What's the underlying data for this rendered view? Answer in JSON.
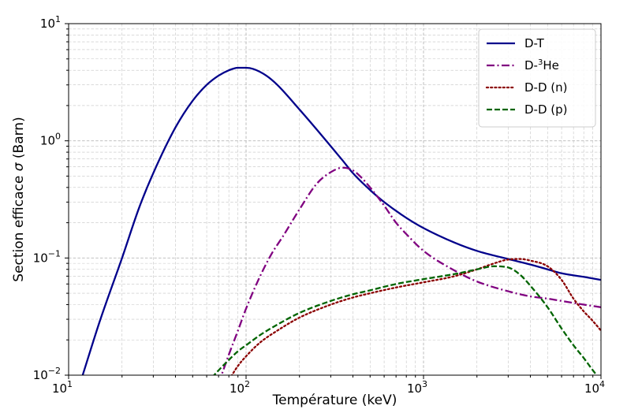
{
  "chart_data": {
    "type": "line",
    "xlabel": "Température (keV)",
    "ylabel_text": "Section efficace ",
    "ylabel_symbol": "σ",
    "ylabel_unit": " (Barn)",
    "xscale": "log",
    "yscale": "log",
    "xlim": [
      10,
      10000
    ],
    "ylim": [
      0.01,
      10
    ],
    "grid": true,
    "grid_minor": true,
    "legend_position": "upper right",
    "x_ticks": [
      {
        "base": "10",
        "exp": "1"
      },
      {
        "base": "10",
        "exp": "2"
      },
      {
        "base": "10",
        "exp": "3"
      },
      {
        "base": "10",
        "exp": "4"
      }
    ],
    "y_ticks": [
      {
        "base": "10",
        "exp": "−2"
      },
      {
        "base": "10",
        "exp": "−1"
      },
      {
        "base": "10",
        "exp": "0"
      },
      {
        "base": "10",
        "exp": "1"
      }
    ],
    "series": [
      {
        "name": "D-T",
        "name_prefix": "D-T",
        "name_sup": "",
        "name_suffix": "",
        "color": "#00008b",
        "style": "solid",
        "points": [
          [
            12,
            0.01
          ],
          [
            15,
            0.029
          ],
          [
            20,
            0.1
          ],
          [
            25,
            0.27
          ],
          [
            30,
            0.53
          ],
          [
            40,
            1.3
          ],
          [
            50,
            2.2
          ],
          [
            60,
            3.0
          ],
          [
            70,
            3.6
          ],
          [
            80,
            4.0
          ],
          [
            90,
            4.2
          ],
          [
            100,
            4.2
          ],
          [
            110,
            4.1
          ],
          [
            130,
            3.6
          ],
          [
            150,
            3.0
          ],
          [
            200,
            1.85
          ],
          [
            250,
            1.25
          ],
          [
            300,
            0.9
          ],
          [
            350,
            0.68
          ],
          [
            400,
            0.53
          ],
          [
            500,
            0.38
          ],
          [
            600,
            0.3
          ],
          [
            800,
            0.22
          ],
          [
            1000,
            0.18
          ],
          [
            1500,
            0.135
          ],
          [
            2000,
            0.115
          ],
          [
            3000,
            0.098
          ],
          [
            4000,
            0.088
          ],
          [
            5000,
            0.08
          ],
          [
            6000,
            0.074
          ],
          [
            8000,
            0.069
          ],
          [
            10000,
            0.065
          ]
        ]
      },
      {
        "name": "D-3He",
        "name_prefix": "D-",
        "name_sup": "3",
        "name_suffix": "He",
        "color": "#800080",
        "style": "dashdot",
        "points": [
          [
            70,
            0.0085
          ],
          [
            80,
            0.015
          ],
          [
            90,
            0.024
          ],
          [
            100,
            0.037
          ],
          [
            120,
            0.07
          ],
          [
            140,
            0.11
          ],
          [
            160,
            0.15
          ],
          [
            200,
            0.26
          ],
          [
            250,
            0.43
          ],
          [
            300,
            0.54
          ],
          [
            350,
            0.59
          ],
          [
            400,
            0.56
          ],
          [
            450,
            0.48
          ],
          [
            500,
            0.4
          ],
          [
            600,
            0.28
          ],
          [
            700,
            0.2
          ],
          [
            800,
            0.16
          ],
          [
            1000,
            0.115
          ],
          [
            1500,
            0.078
          ],
          [
            2000,
            0.063
          ],
          [
            3000,
            0.052
          ],
          [
            4000,
            0.047
          ],
          [
            5000,
            0.045
          ],
          [
            6000,
            0.043
          ],
          [
            8000,
            0.04
          ],
          [
            10000,
            0.038
          ]
        ]
      },
      {
        "name": "D-D (n)",
        "name_prefix": "D-D (n)",
        "name_sup": "",
        "name_suffix": "",
        "color": "#8b0000",
        "style": "dotted",
        "points": [
          [
            78,
            0.0085
          ],
          [
            90,
            0.012
          ],
          [
            100,
            0.0145
          ],
          [
            120,
            0.019
          ],
          [
            150,
            0.024
          ],
          [
            200,
            0.031
          ],
          [
            300,
            0.04
          ],
          [
            400,
            0.046
          ],
          [
            500,
            0.05
          ],
          [
            700,
            0.056
          ],
          [
            1000,
            0.062
          ],
          [
            1500,
            0.07
          ],
          [
            2000,
            0.08
          ],
          [
            2500,
            0.09
          ],
          [
            3000,
            0.097
          ],
          [
            3500,
            0.098
          ],
          [
            4000,
            0.095
          ],
          [
            5000,
            0.085
          ],
          [
            6000,
            0.065
          ],
          [
            7000,
            0.045
          ],
          [
            8000,
            0.035
          ],
          [
            9000,
            0.029
          ],
          [
            10000,
            0.024
          ]
        ]
      },
      {
        "name": "D-D (p)",
        "name_prefix": "D-D (p)",
        "name_sup": "",
        "name_suffix": "",
        "color": "#006400",
        "style": "dashed",
        "points": [
          [
            60,
            0.0085
          ],
          [
            70,
            0.011
          ],
          [
            80,
            0.0135
          ],
          [
            90,
            0.016
          ],
          [
            100,
            0.018
          ],
          [
            120,
            0.022
          ],
          [
            150,
            0.027
          ],
          [
            200,
            0.034
          ],
          [
            300,
            0.043
          ],
          [
            400,
            0.049
          ],
          [
            500,
            0.053
          ],
          [
            700,
            0.06
          ],
          [
            1000,
            0.066
          ],
          [
            1500,
            0.073
          ],
          [
            2000,
            0.08
          ],
          [
            2500,
            0.085
          ],
          [
            3000,
            0.083
          ],
          [
            3500,
            0.072
          ],
          [
            4000,
            0.058
          ],
          [
            5000,
            0.038
          ],
          [
            6000,
            0.025
          ],
          [
            7000,
            0.018
          ],
          [
            8000,
            0.014
          ],
          [
            9000,
            0.011
          ],
          [
            10000,
            0.009
          ]
        ]
      }
    ]
  }
}
